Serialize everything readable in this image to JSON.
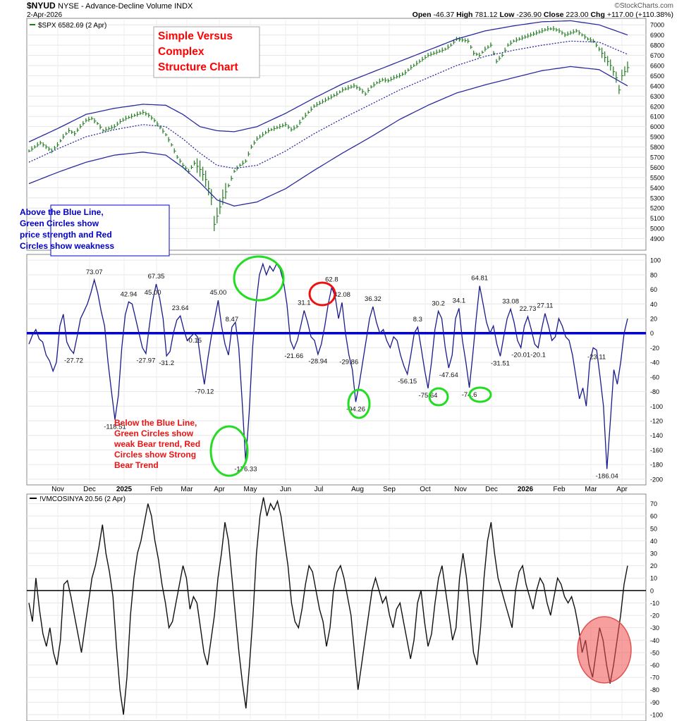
{
  "header": {
    "symbol": "$NYUD",
    "description": "NYSE - Advance-Decline Volume INDX",
    "date": "2-Apr-2026",
    "source": "©StockCharts.com",
    "ohlc": {
      "open_label": "Open",
      "open": "-46.37",
      "high_label": "High",
      "high": "781.12",
      "low_label": "Low",
      "low": "-236.90",
      "close_label": "Close",
      "close": "223.00",
      "chg_label": "Chg",
      "chg": "+117.00 (+110.38%)"
    }
  },
  "colors": {
    "price_bars": "#1f7a1f",
    "envelope": "#2b2b9e",
    "breadth_line": "#1a1a8c",
    "zero_line": "#0000dd",
    "annot_red": "#ff0000",
    "annot_blue": "#0000cc",
    "circle_green": "#22dd22",
    "circle_red": "#ee1111"
  },
  "annotations": {
    "title_lines": [
      "Simple Versus",
      "Complex",
      "Structure Chart"
    ],
    "above_lines": [
      "Above the Blue Line,",
      "Green Circles show",
      "price strength and Red",
      "Circles show weakness"
    ],
    "below_lines": [
      "Below the Blue Line,",
      "Green Circles show",
      "weak Bear trend, Red",
      "Circles show Strong",
      "Bear Trend"
    ]
  },
  "x_axis": {
    "labels": [
      "Nov",
      "Dec",
      "2025",
      "Feb",
      "Mar",
      "Apr",
      "May",
      "Jun",
      "Jul",
      "Aug",
      "Sep",
      "Oct",
      "Nov",
      "Dec",
      "2026",
      "Feb",
      "Mar",
      "Apr"
    ],
    "bold": [
      false,
      false,
      true,
      false,
      false,
      false,
      false,
      false,
      false,
      false,
      false,
      false,
      false,
      false,
      true,
      false,
      false,
      false
    ]
  },
  "chart_data": [
    {
      "type": "bar",
      "title": "$SPX 6582.69 (2 Apr)",
      "series": [
        {
          "name": "$SPX",
          "last": 6582.69
        }
      ],
      "ylim": [
        4800,
        7050
      ],
      "yticks": [
        4900,
        5000,
        5100,
        5200,
        5300,
        5400,
        5500,
        5600,
        5700,
        5800,
        5900,
        6000,
        6100,
        6200,
        6300,
        6400,
        6500,
        6600,
        6700,
        6800,
        6900,
        7000
      ],
      "anchors": [
        [
          0,
          5760
        ],
        [
          2,
          5800
        ],
        [
          4,
          5840
        ],
        [
          6,
          5800
        ],
        [
          8,
          5760
        ],
        [
          10,
          5820
        ],
        [
          12,
          5900
        ],
        [
          14,
          5960
        ],
        [
          16,
          5930
        ],
        [
          18,
          6000
        ],
        [
          20,
          6060
        ],
        [
          22,
          6080
        ],
        [
          24,
          6030
        ],
        [
          26,
          5960
        ],
        [
          28,
          5980
        ],
        [
          30,
          6000
        ],
        [
          32,
          6050
        ],
        [
          34,
          6080
        ],
        [
          36,
          6100
        ],
        [
          38,
          6120
        ],
        [
          40,
          6140
        ],
        [
          42,
          6110
        ],
        [
          44,
          6060
        ],
        [
          46,
          5990
        ],
        [
          48,
          5920
        ],
        [
          50,
          5820
        ],
        [
          52,
          5700
        ],
        [
          54,
          5620
        ],
        [
          56,
          5560
        ],
        [
          58,
          5640
        ],
        [
          60,
          5580
        ],
        [
          62,
          5480
        ],
        [
          64,
          5300
        ],
        [
          65,
          5040
        ],
        [
          66,
          5120
        ],
        [
          68,
          5300
        ],
        [
          70,
          5420
        ],
        [
          72,
          5560
        ],
        [
          74,
          5620
        ],
        [
          76,
          5660
        ],
        [
          78,
          5800
        ],
        [
          80,
          5880
        ],
        [
          82,
          5920
        ],
        [
          84,
          5960
        ],
        [
          86,
          5980
        ],
        [
          88,
          6000
        ],
        [
          90,
          6020
        ],
        [
          92,
          5970
        ],
        [
          94,
          6000
        ],
        [
          96,
          6080
        ],
        [
          98,
          6140
        ],
        [
          100,
          6200
        ],
        [
          102,
          6230
        ],
        [
          104,
          6260
        ],
        [
          106,
          6290
        ],
        [
          108,
          6320
        ],
        [
          110,
          6360
        ],
        [
          112,
          6380
        ],
        [
          114,
          6400
        ],
        [
          116,
          6370
        ],
        [
          118,
          6320
        ],
        [
          120,
          6390
        ],
        [
          122,
          6430
        ],
        [
          124,
          6460
        ],
        [
          126,
          6450
        ],
        [
          128,
          6480
        ],
        [
          130,
          6500
        ],
        [
          132,
          6530
        ],
        [
          134,
          6580
        ],
        [
          136,
          6620
        ],
        [
          138,
          6660
        ],
        [
          140,
          6700
        ],
        [
          142,
          6720
        ],
        [
          144,
          6740
        ],
        [
          146,
          6760
        ],
        [
          148,
          6800
        ],
        [
          150,
          6860
        ],
        [
          152,
          6850
        ],
        [
          154,
          6840
        ],
        [
          156,
          6720
        ],
        [
          158,
          6700
        ],
        [
          160,
          6760
        ],
        [
          162,
          6800
        ],
        [
          164,
          6640
        ],
        [
          166,
          6700
        ],
        [
          168,
          6800
        ],
        [
          170,
          6840
        ],
        [
          172,
          6860
        ],
        [
          174,
          6880
        ],
        [
          176,
          6900
        ],
        [
          178,
          6920
        ],
        [
          180,
          6940
        ],
        [
          182,
          6960
        ],
        [
          184,
          6960
        ],
        [
          186,
          6940
        ],
        [
          188,
          6900
        ],
        [
          190,
          6920
        ],
        [
          192,
          6940
        ],
        [
          194,
          6900
        ],
        [
          196,
          6860
        ],
        [
          198,
          6840
        ],
        [
          200,
          6760
        ],
        [
          202,
          6680
        ],
        [
          204,
          6600
        ],
        [
          206,
          6480
        ],
        [
          207,
          6360
        ],
        [
          208,
          6500
        ],
        [
          210,
          6580
        ]
      ],
      "upper_envelope": [
        [
          0,
          5850
        ],
        [
          10,
          5980
        ],
        [
          20,
          6120
        ],
        [
          30,
          6180
        ],
        [
          40,
          6220
        ],
        [
          48,
          6210
        ],
        [
          54,
          6120
        ],
        [
          60,
          6000
        ],
        [
          66,
          5960
        ],
        [
          72,
          5950
        ],
        [
          80,
          6000
        ],
        [
          90,
          6130
        ],
        [
          100,
          6280
        ],
        [
          110,
          6420
        ],
        [
          120,
          6530
        ],
        [
          130,
          6640
        ],
        [
          140,
          6750
        ],
        [
          150,
          6860
        ],
        [
          160,
          6940
        ],
        [
          170,
          6990
        ],
        [
          180,
          7030
        ],
        [
          190,
          7040
        ],
        [
          200,
          7000
        ],
        [
          210,
          6900
        ]
      ],
      "middle_envelope": [
        [
          0,
          5650
        ],
        [
          10,
          5780
        ],
        [
          20,
          5900
        ],
        [
          30,
          5970
        ],
        [
          40,
          6020
        ],
        [
          48,
          6000
        ],
        [
          54,
          5880
        ],
        [
          60,
          5740
        ],
        [
          66,
          5620
        ],
        [
          72,
          5590
        ],
        [
          80,
          5620
        ],
        [
          90,
          5760
        ],
        [
          100,
          5930
        ],
        [
          110,
          6080
        ],
        [
          120,
          6220
        ],
        [
          130,
          6360
        ],
        [
          140,
          6480
        ],
        [
          150,
          6600
        ],
        [
          160,
          6690
        ],
        [
          170,
          6750
        ],
        [
          180,
          6800
        ],
        [
          190,
          6840
        ],
        [
          200,
          6830
        ],
        [
          210,
          6710
        ]
      ],
      "lower_envelope": [
        [
          0,
          5440
        ],
        [
          10,
          5550
        ],
        [
          20,
          5650
        ],
        [
          30,
          5720
        ],
        [
          40,
          5750
        ],
        [
          48,
          5720
        ],
        [
          54,
          5600
        ],
        [
          60,
          5450
        ],
        [
          66,
          5280
        ],
        [
          72,
          5220
        ],
        [
          80,
          5260
        ],
        [
          90,
          5390
        ],
        [
          100,
          5570
        ],
        [
          110,
          5740
        ],
        [
          120,
          5900
        ],
        [
          130,
          6070
        ],
        [
          140,
          6210
        ],
        [
          150,
          6330
        ],
        [
          160,
          6410
        ],
        [
          170,
          6480
        ],
        [
          180,
          6550
        ],
        [
          190,
          6590
        ],
        [
          200,
          6560
        ],
        [
          210,
          6400
        ]
      ]
    },
    {
      "type": "line",
      "title": "$NYUD NYSE - Advance-Decline Volume INDX",
      "series": [
        {
          "name": "$NYUD"
        }
      ],
      "ylim": [
        -205,
        105
      ],
      "yticks": [
        100,
        80,
        60,
        40,
        20,
        0,
        -20,
        -40,
        -60,
        -80,
        -100,
        -120,
        -140,
        -160,
        -180,
        -200
      ],
      "values": [
        -15,
        -3,
        5,
        -8,
        -12,
        -30,
        -38,
        -52,
        -40,
        10,
        26,
        -12,
        -22,
        -27.72,
        -5,
        20,
        30,
        40,
        55,
        73.07,
        55,
        30,
        10,
        -40,
        -80,
        -118.51,
        -85,
        -20,
        25,
        42.94,
        40,
        20,
        0,
        -20,
        -27.97,
        10,
        45,
        67.35,
        48,
        20,
        -31.2,
        -25,
        0,
        18,
        23.64,
        5,
        -10,
        -5,
        -0.15,
        -5,
        -40,
        -70.12,
        -35,
        -5,
        20,
        45,
        10,
        -15,
        -30,
        8.47,
        15,
        -20,
        -95,
        -176.33,
        -110,
        -20,
        40,
        80,
        95,
        80,
        92,
        85,
        95,
        88,
        70,
        40,
        -10,
        -21.66,
        -10,
        10,
        31.1,
        15,
        -5,
        -10,
        -28.94,
        -15,
        10,
        40,
        62.8,
        50,
        20,
        42.08,
        0,
        -29.86,
        -50,
        -94.26,
        -70,
        -40,
        -10,
        20,
        36.32,
        15,
        0,
        5,
        -10,
        -20,
        -5,
        -10,
        -30,
        -45,
        -56.15,
        -30,
        0,
        8.3,
        -20,
        -50,
        -75.64,
        -40,
        5,
        30.2,
        20,
        -20,
        -47.64,
        -30,
        20,
        34.1,
        -10,
        -40,
        -74.6,
        -30,
        20,
        64.81,
        40,
        15,
        0,
        10,
        -15,
        -31.51,
        -5,
        20,
        33.08,
        15,
        -10,
        -20.01,
        10,
        22.73,
        5,
        -15,
        -20.1,
        5,
        27.11,
        10,
        -10,
        -5,
        20,
        10,
        -5,
        -10,
        -30,
        -60,
        -90,
        -75,
        -100,
        -40,
        -20,
        -23.11,
        -60,
        -100,
        -186.04,
        -120,
        -50,
        -70,
        -40,
        0,
        20
      ]
    },
    {
      "type": "line",
      "title": "!VMCOSINYA 20.56 (2 Apr)",
      "series": [
        {
          "name": "!VMCOSINYA",
          "last": 20.56
        }
      ],
      "ylim": [
        -104,
        76
      ],
      "yticks": [
        70,
        60,
        50,
        40,
        30,
        20,
        10,
        0,
        -10,
        -20,
        -30,
        -40,
        -50,
        -60,
        -70,
        -80,
        -90,
        -100
      ],
      "values": [
        -10,
        -25,
        10,
        -15,
        -35,
        -45,
        -30,
        -50,
        -60,
        -40,
        5,
        8,
        -5,
        -20,
        -35,
        -50,
        -30,
        -10,
        10,
        20,
        35,
        53,
        30,
        15,
        -5,
        -45,
        -80,
        -100,
        -70,
        -20,
        10,
        30,
        40,
        55,
        70,
        60,
        40,
        25,
        5,
        -10,
        -30,
        -25,
        -10,
        5,
        20,
        10,
        -15,
        -5,
        -10,
        -30,
        -50,
        -60,
        -40,
        -20,
        10,
        30,
        55,
        40,
        10,
        -20,
        -50,
        -75,
        -95,
        -60,
        -20,
        30,
        60,
        75,
        60,
        70,
        65,
        72,
        60,
        40,
        20,
        -10,
        -25,
        -30,
        -15,
        5,
        20,
        15,
        0,
        -15,
        -25,
        -45,
        -30,
        0,
        15,
        20,
        10,
        -5,
        -20,
        -50,
        -80,
        -60,
        -40,
        -20,
        0,
        10,
        0,
        -10,
        -5,
        -20,
        -30,
        -15,
        -10,
        -25,
        -40,
        -55,
        -40,
        -10,
        0,
        -25,
        -45,
        -35,
        -10,
        10,
        20,
        0,
        -20,
        -40,
        -30,
        10,
        30,
        10,
        -20,
        -50,
        -60,
        -30,
        10,
        40,
        55,
        30,
        10,
        0,
        -10,
        -20,
        -30,
        0,
        15,
        20,
        5,
        -5,
        -15,
        0,
        10,
        5,
        -10,
        -20,
        -5,
        10,
        5,
        -5,
        -10,
        -5,
        -15,
        -30,
        -50,
        -40,
        -60,
        -70,
        -50,
        -30,
        -40,
        -60,
        -75,
        -60,
        -40,
        -20,
        5,
        20
      ]
    }
  ]
}
